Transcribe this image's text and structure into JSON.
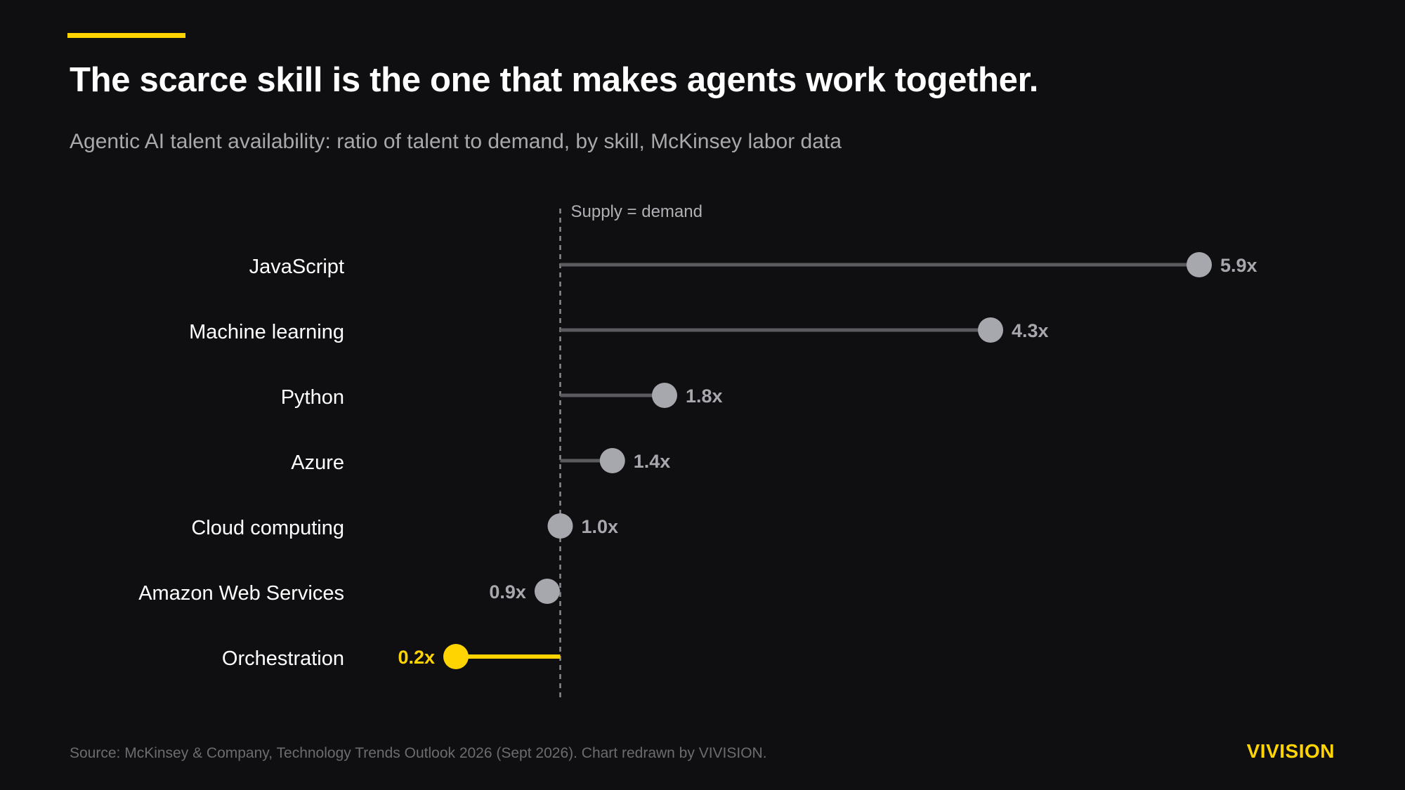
{
  "header": {
    "title": "The scarce skill is the one that makes agents work together.",
    "subtitle": "Agentic AI talent availability: ratio of talent to demand, by skill, McKinsey labor data"
  },
  "chart_data": {
    "type": "lollipop",
    "reference_line": {
      "value": 1.0,
      "label": "Supply = demand"
    },
    "categories": [
      "JavaScript",
      "Machine learning",
      "Python",
      "Azure",
      "Cloud computing",
      "Amazon Web Services",
      "Orchestration"
    ],
    "values": [
      5.9,
      4.3,
      1.8,
      1.4,
      1.0,
      0.9,
      0.2
    ],
    "value_labels": [
      "5.9x",
      "4.3x",
      "1.8x",
      "1.4x",
      "1.0x",
      "0.9x",
      "0.2x"
    ],
    "highlight": [
      "Orchestration"
    ],
    "xlim": [
      0.2,
      5.9
    ],
    "colors": {
      "default_line": "#5a5a5f",
      "default_dot": "#a7a7ae",
      "default_label": "#a7a7ae",
      "highlight": "#ffd400",
      "category_label": "#ffffff",
      "reference_line": "#8a8a8f",
      "reference_label": "#b0b0b5"
    }
  },
  "footer": {
    "source": "Source: McKinsey & Company, Technology Trends Outlook 2026 (Sept 2026). Chart redrawn by VIVISION.",
    "brand": "VIVISION"
  }
}
